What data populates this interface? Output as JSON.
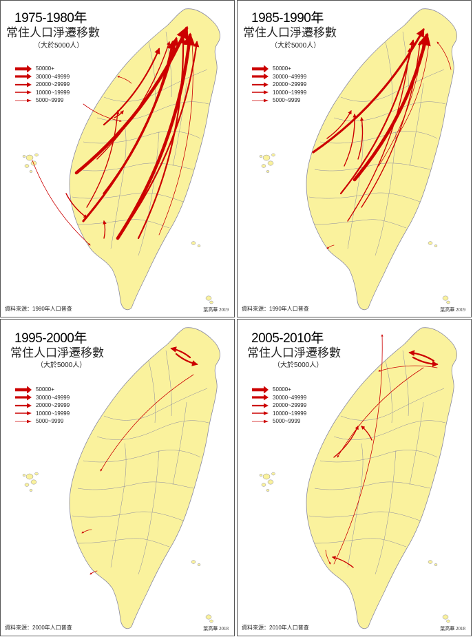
{
  "colors": {
    "land": "#FAF29D",
    "border": "#8A8AA0",
    "arrow": "#CC0000",
    "frame": "#555555"
  },
  "legend": [
    {
      "label": "50000+",
      "weight": 5
    },
    {
      "label": "30000~49999",
      "weight": 4
    },
    {
      "label": "20000~29999",
      "weight": 3
    },
    {
      "label": "10000~19999",
      "weight": 2
    },
    {
      "label": "5000~9999",
      "weight": 1
    }
  ],
  "panels": [
    {
      "period": "1975-1980年",
      "title": "常住人口淨遷移數",
      "note": "（大於5000人）",
      "source": "資料來源：1980年人口普查",
      "credit": "葉高華 2019",
      "flows": [
        {
          "from": [
            110,
            250
          ],
          "to": [
            270,
            40
          ],
          "weight": 5
        },
        {
          "from": [
            170,
            345
          ],
          "to": [
            275,
            50
          ],
          "weight": 5
        },
        {
          "from": [
            150,
            280
          ],
          "to": [
            250,
            60
          ],
          "weight": 4
        },
        {
          "from": [
            120,
            320
          ],
          "to": [
            255,
            55
          ],
          "weight": 4
        },
        {
          "from": [
            180,
            330
          ],
          "to": [
            285,
            60
          ],
          "weight": 3
        },
        {
          "from": [
            200,
            345
          ],
          "to": [
            265,
            55
          ],
          "weight": 3
        },
        {
          "from": [
            150,
            180
          ],
          "to": [
            230,
            70
          ],
          "weight": 3
        },
        {
          "from": [
            140,
            230
          ],
          "to": [
            245,
            60
          ],
          "weight": 2
        },
        {
          "from": [
            125,
            300
          ],
          "to": [
            170,
            160
          ],
          "weight": 2
        },
        {
          "from": [
            230,
            340
          ],
          "to": [
            278,
            60
          ],
          "weight": 1
        },
        {
          "from": [
            95,
            280
          ],
          "to": [
            125,
            315
          ],
          "weight": 2
        },
        {
          "from": [
            150,
            345
          ],
          "to": [
            150,
            320
          ],
          "weight": 2
        },
        {
          "from": [
            165,
            170
          ],
          "to": [
            178,
            160
          ],
          "weight": 2
        },
        {
          "from": [
            46,
            232
          ],
          "to": [
            130,
            355
          ],
          "weight": 1
        },
        {
          "from": [
            190,
            120
          ],
          "to": [
            170,
            110
          ],
          "weight": 1
        },
        {
          "from": [
            120,
            150
          ],
          "to": [
            175,
            175
          ],
          "weight": 1
        }
      ]
    },
    {
      "period": "1985-1990年",
      "title": "常住人口淨遷移數",
      "note": "（大於5000人）",
      "source": "資料來源：1990年人口普查",
      "credit": "葉高華 2019",
      "flows": [
        {
          "from": [
            110,
            220
          ],
          "to": [
            270,
            42
          ],
          "weight": 4
        },
        {
          "from": [
            170,
            260
          ],
          "to": [
            275,
            50
          ],
          "weight": 5
        },
        {
          "from": [
            150,
            280
          ],
          "to": [
            255,
            58
          ],
          "weight": 3
        },
        {
          "from": [
            180,
            300
          ],
          "to": [
            265,
            60
          ],
          "weight": 2
        },
        {
          "from": [
            160,
            320
          ],
          "to": [
            250,
            70
          ],
          "weight": 2
        },
        {
          "from": [
            130,
            200
          ],
          "to": [
            165,
            160
          ],
          "weight": 2
        },
        {
          "from": [
            155,
            240
          ],
          "to": [
            170,
            165
          ],
          "weight": 2
        },
        {
          "from": [
            175,
            230
          ],
          "to": [
            180,
            170
          ],
          "weight": 2
        },
        {
          "from": [
            230,
            200
          ],
          "to": [
            278,
            60
          ],
          "weight": 1
        },
        {
          "from": [
            205,
            240
          ],
          "to": [
            270,
            55
          ],
          "weight": 1
        },
        {
          "from": [
            140,
            355
          ],
          "to": [
            130,
            360
          ],
          "weight": 1
        },
        {
          "from": [
            310,
            100
          ],
          "to": [
            290,
            60
          ],
          "weight": 1
        }
      ]
    },
    {
      "period": "1995-2000年",
      "title": "常住人口淨遷移數",
      "note": "（大於5000人）",
      "source": "資料來源：2000年人口普查",
      "credit": "葉高華 2018",
      "flows": [
        {
          "from": [
            275,
            55
          ],
          "to": [
            248,
            42
          ],
          "weight": 3
        },
        {
          "from": [
            255,
            50
          ],
          "to": [
            285,
            65
          ],
          "weight": 3
        },
        {
          "from": [
            280,
            80
          ],
          "to": [
            145,
            220
          ],
          "weight": 1
        },
        {
          "from": [
            132,
            305
          ],
          "to": [
            118,
            310
          ],
          "weight": 1
        },
        {
          "from": [
            140,
            365
          ],
          "to": [
            130,
            370
          ],
          "weight": 1
        }
      ]
    },
    {
      "period": "2005-2010年",
      "title": "常住人口淨遷移數",
      "note": "（大於5000人）",
      "source": "資料來源：2010年人口普查",
      "credit": "葉高華 2018",
      "flows": [
        {
          "from": [
            285,
            60
          ],
          "to": [
            250,
            48
          ],
          "weight": 3
        },
        {
          "from": [
            255,
            55
          ],
          "to": [
            290,
            65
          ],
          "weight": 3
        },
        {
          "from": [
            290,
            70
          ],
          "to": [
            205,
            75
          ],
          "weight": 1
        },
        {
          "from": [
            270,
            70
          ],
          "to": [
            145,
            200
          ],
          "weight": 1
        },
        {
          "from": [
            140,
            200
          ],
          "to": [
            175,
            155
          ],
          "weight": 2
        },
        {
          "from": [
            195,
            175
          ],
          "to": [
            180,
            155
          ],
          "weight": 2
        },
        {
          "from": [
            140,
            355
          ],
          "to": [
            210,
            22
          ],
          "weight": 1
        },
        {
          "from": [
            168,
            360
          ],
          "to": [
            138,
            345
          ],
          "weight": 2
        },
        {
          "from": [
            128,
            335
          ],
          "to": [
            135,
            355
          ],
          "weight": 1
        }
      ]
    }
  ]
}
